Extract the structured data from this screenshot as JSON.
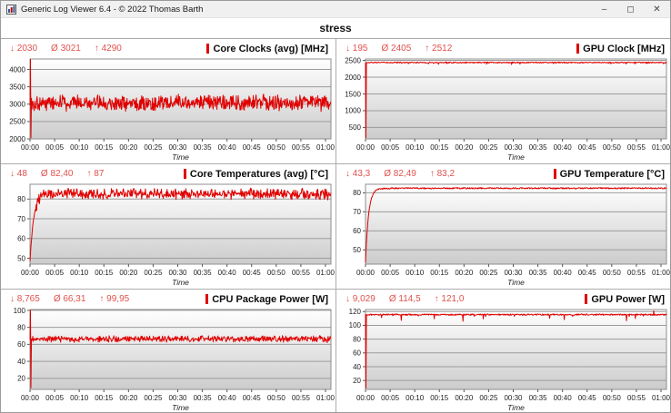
{
  "window": {
    "title": "Generic Log Viewer 6.4 - © 2022 Thomas Barth",
    "controls": {
      "minimize": "–",
      "maximize": "◻",
      "close": "✕"
    }
  },
  "tab": {
    "label": "stress"
  },
  "colors": {
    "series_red": "#e00000",
    "stats_red": "#e0524e",
    "grid_line": "#9c9c9c",
    "plot_border": "#8f8f8f",
    "plot_bg_top": "#ffffff",
    "plot_bg_bottom": "#cccccc",
    "panel_border": "#adadad"
  },
  "time_ticks": [
    "00:00",
    "00:05",
    "00:10",
    "00:15",
    "00:20",
    "00:25",
    "00:30",
    "00:35",
    "00:40",
    "00:45",
    "00:50",
    "00:55",
    "01:00"
  ],
  "chart_data": [
    {
      "type": "line",
      "title": "Core Clocks (avg) [MHz]",
      "stats": {
        "min_label": "↓ 2030",
        "avg_label": "Ø 3021",
        "max_label": "↑ 4290",
        "min": 2030,
        "avg": 3021,
        "max": 4290
      },
      "xlabel": "Time",
      "x_ticks": [
        "00:00",
        "00:05",
        "00:10",
        "00:15",
        "00:20",
        "00:25",
        "00:30",
        "00:35",
        "00:40",
        "00:45",
        "00:50",
        "00:55",
        "01:00"
      ],
      "ylim": [
        2000,
        4300
      ],
      "yticks": [
        2000,
        2500,
        3000,
        3500,
        4000
      ],
      "legend": "none",
      "grid": true,
      "series_color": "#e00000",
      "profile": {
        "type": "noisy",
        "seed": 101,
        "baseline": 3040,
        "noise": 170,
        "jitter": 110,
        "clamp": [
          2790,
          3520
        ],
        "start_spike": [
          4290,
          2030
        ]
      }
    },
    {
      "type": "line",
      "title": "GPU Clock [MHz]",
      "stats": {
        "min_label": "↓ 195",
        "avg_label": "Ø 2405",
        "max_label": "↑ 2512",
        "min": 195,
        "avg": 2405,
        "max": 2512
      },
      "xlabel": "Time",
      "x_ticks": [
        "00:00",
        "00:05",
        "00:10",
        "00:15",
        "00:20",
        "00:25",
        "00:30",
        "00:35",
        "00:40",
        "00:45",
        "00:50",
        "00:55",
        "01:00"
      ],
      "ylim": [
        160,
        2540
      ],
      "yticks": [
        500,
        1000,
        1500,
        2000,
        2500
      ],
      "legend": "none",
      "grid": true,
      "series_color": "#e00000",
      "profile": {
        "type": "flat",
        "seed": 202,
        "baseline": 2435,
        "noise": 16,
        "dips": {
          "prob": 0.05,
          "depth": 55
        },
        "clamp": [
          195,
          2512
        ],
        "start_spike": [
          195
        ]
      }
    },
    {
      "type": "line",
      "title": "Core Temperatures (avg) [°C]",
      "stats": {
        "min_label": "↓ 48",
        "avg_label": "Ø 82,40",
        "max_label": "↑ 87",
        "min": 48,
        "avg": 82.4,
        "max": 87
      },
      "xlabel": "Time",
      "x_ticks": [
        "00:00",
        "00:05",
        "00:10",
        "00:15",
        "00:20",
        "00:25",
        "00:30",
        "00:35",
        "00:40",
        "00:45",
        "00:50",
        "00:55",
        "01:00"
      ],
      "ylim": [
        47,
        87.5
      ],
      "yticks": [
        50,
        60,
        70,
        80
      ],
      "legend": "none",
      "grid": true,
      "series_color": "#e00000",
      "profile": {
        "type": "rise",
        "seed": 303,
        "start_val": 48,
        "rise_frac": 0.012,
        "baseline": 82.6,
        "noise": 1.7,
        "jitter": 1.4,
        "clamp": [
          48,
          86.9
        ]
      }
    },
    {
      "type": "line",
      "title": "GPU Temperature [°C]",
      "stats": {
        "min_label": "↓ 43,3",
        "avg_label": "Ø 82,49",
        "max_label": "↑ 83,2",
        "min": 43.3,
        "avg": 82.49,
        "max": 83.2
      },
      "xlabel": "Time",
      "x_ticks": [
        "00:00",
        "00:05",
        "00:10",
        "00:15",
        "00:20",
        "00:25",
        "00:30",
        "00:35",
        "00:40",
        "00:45",
        "00:50",
        "00:55",
        "01:00"
      ],
      "ylim": [
        42.5,
        84.5
      ],
      "yticks": [
        50,
        60,
        70,
        80
      ],
      "legend": "none",
      "grid": true,
      "series_color": "#e00000",
      "profile": {
        "type": "rise",
        "seed": 404,
        "start_val": 43.3,
        "rise_frac": 0.01,
        "baseline": 82.4,
        "noise": 0.35,
        "jitter": 0,
        "clamp": [
          43.3,
          83.2
        ]
      }
    },
    {
      "type": "line",
      "title": "CPU Package Power [W]",
      "stats": {
        "min_label": "↓ 8,765",
        "avg_label": "Ø 66,31",
        "max_label": "↑ 99,95",
        "min": 8.765,
        "avg": 66.31,
        "max": 99.95
      },
      "xlabel": "Time",
      "x_ticks": [
        "00:00",
        "00:05",
        "00:10",
        "00:15",
        "00:20",
        "00:25",
        "00:30",
        "00:35",
        "00:40",
        "00:45",
        "00:50",
        "00:55",
        "01:00"
      ],
      "ylim": [
        7,
        101
      ],
      "yticks": [
        20,
        40,
        60,
        80,
        100
      ],
      "legend": "none",
      "grid": true,
      "series_color": "#e00000",
      "profile": {
        "type": "noisy",
        "seed": 505,
        "baseline": 66.3,
        "noise": 2.4,
        "jitter": 2.0,
        "clamp": [
          58,
          76
        ],
        "start_spike": [
          99.95,
          8.765
        ]
      }
    },
    {
      "type": "line",
      "title": "GPU Power [W]",
      "stats": {
        "min_label": "↓ 9,029",
        "avg_label": "Ø 114,5",
        "max_label": "↑ 121,0",
        "min": 9.029,
        "avg": 114.5,
        "max": 121.0
      },
      "xlabel": "Time",
      "x_ticks": [
        "00:00",
        "00:05",
        "00:10",
        "00:15",
        "00:20",
        "00:25",
        "00:30",
        "00:35",
        "00:40",
        "00:45",
        "00:50",
        "00:55",
        "01:00"
      ],
      "ylim": [
        7,
        123
      ],
      "yticks": [
        20,
        40,
        60,
        80,
        100,
        120
      ],
      "legend": "none",
      "grid": true,
      "series_color": "#e00000",
      "profile": {
        "type": "flat",
        "seed": 606,
        "baseline": 115.6,
        "noise": 1.0,
        "dips": {
          "prob": 0.035,
          "depth": 9
        },
        "clamp": [
          9.029,
          121
        ],
        "start_spike": [
          9.029
        ],
        "up_spike": {
          "x": 0.957,
          "val": 121
        }
      }
    }
  ]
}
